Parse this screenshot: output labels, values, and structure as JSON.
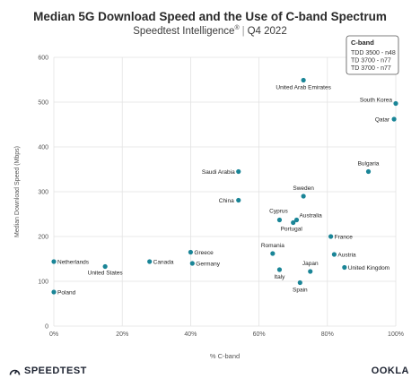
{
  "chart_data": {
    "type": "scatter",
    "title": "Median 5G Download Speed and the Use of C-band Spectrum",
    "subtitle_brand": "Speedtest Intelligence",
    "subtitle_mark": "®",
    "subtitle_period": "Q4 2022",
    "xlabel": "% C-band",
    "ylabel": "Median Download Speed (Mbps)",
    "xlim": [
      0,
      100
    ],
    "ylim": [
      0,
      600
    ],
    "xticks": [
      "0%",
      "20%",
      "40%",
      "60%",
      "80%",
      "100%"
    ],
    "yticks": [
      "0",
      "100",
      "200",
      "300",
      "400",
      "500",
      "600"
    ],
    "grid": true,
    "point_color": "#1a8597",
    "legend": {
      "title": "C-band",
      "items": [
        "TDD 3500 - n48",
        "TD 3700 - n77",
        "TD 3700 - n77"
      ],
      "placement": "top-right"
    },
    "points": [
      {
        "label": "United Arab Emirates",
        "x": 73,
        "y": 549
      },
      {
        "label": "South Korea",
        "x": 100,
        "y": 497
      },
      {
        "label": "Qatar",
        "x": 99.5,
        "y": 462
      },
      {
        "label": "Saudi Arabia",
        "x": 54,
        "y": 345
      },
      {
        "label": "Bulgaria",
        "x": 92,
        "y": 345
      },
      {
        "label": "Sweden",
        "x": 73,
        "y": 290
      },
      {
        "label": "China",
        "x": 54,
        "y": 281
      },
      {
        "label": "Cyprus",
        "x": 66,
        "y": 237
      },
      {
        "label": "Australia",
        "x": 71,
        "y": 237
      },
      {
        "label": "Portugal",
        "x": 70,
        "y": 231
      },
      {
        "label": "France",
        "x": 81,
        "y": 200
      },
      {
        "label": "Greece",
        "x": 40,
        "y": 165
      },
      {
        "label": "Romania",
        "x": 64,
        "y": 162
      },
      {
        "label": "Austria",
        "x": 82,
        "y": 160
      },
      {
        "label": "Netherlands",
        "x": 0,
        "y": 144
      },
      {
        "label": "Canada",
        "x": 28,
        "y": 144
      },
      {
        "label": "Germany",
        "x": 40.5,
        "y": 140
      },
      {
        "label": "United States",
        "x": 15,
        "y": 133
      },
      {
        "label": "United Kingdom",
        "x": 85,
        "y": 131
      },
      {
        "label": "Japan",
        "x": 75,
        "y": 122
      },
      {
        "label": "Italy",
        "x": 66,
        "y": 126
      },
      {
        "label": "Spain",
        "x": 72,
        "y": 97
      },
      {
        "label": "Poland",
        "x": 0,
        "y": 76
      }
    ]
  },
  "footer": {
    "brand": "SPEEDTEST",
    "logo": "OOKLA"
  }
}
